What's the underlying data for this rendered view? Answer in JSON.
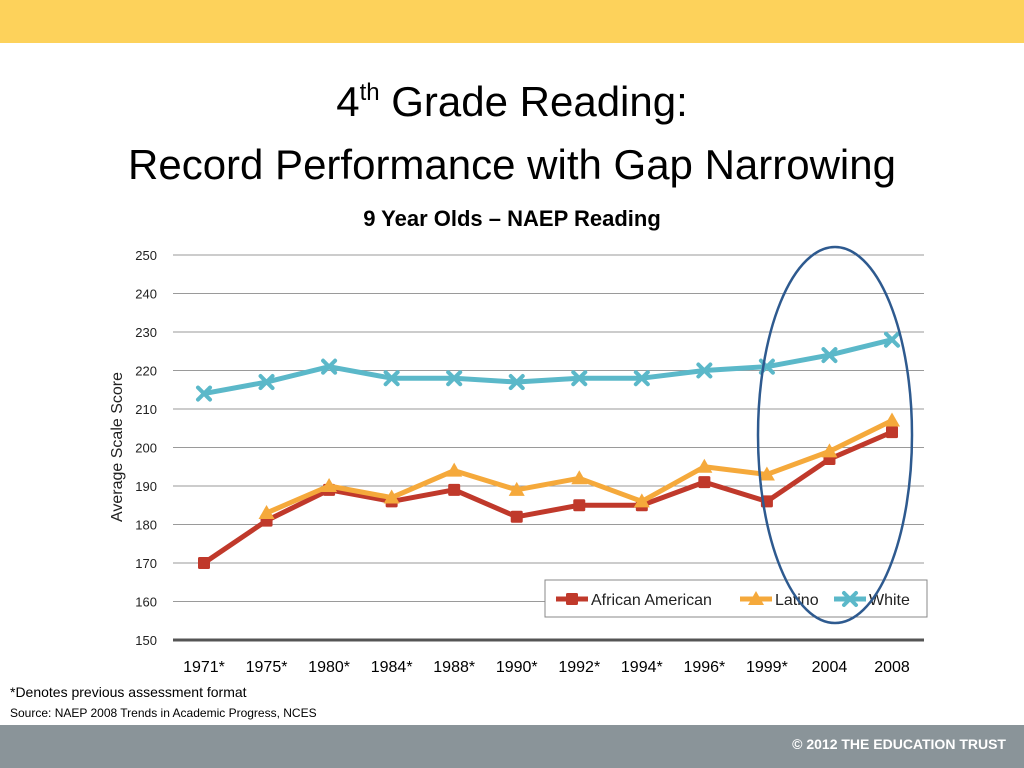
{
  "slide": {
    "title_num": "4",
    "title_sup": "th",
    "title_rest": " Grade Reading:",
    "title_line2": "Record Performance with Gap Narrowing",
    "footnote": "*Denotes previous assessment format",
    "source": "Source: NAEP 2008 Trends in Academic Progress, NCES",
    "copyright": "© 2012 THE EDUCATION TRUST"
  },
  "colors": {
    "top_bar": "#fdd25b",
    "bottom_bar": "#8a9499",
    "highlight_ellipse": "#2e5a8f"
  },
  "chart_data": {
    "type": "line",
    "title": "9 Year Olds – NAEP Reading",
    "xlabel": "",
    "ylabel": "Average Scale Score",
    "ylim": [
      150,
      250
    ],
    "yticks": [
      150,
      160,
      170,
      180,
      190,
      200,
      210,
      220,
      230,
      240,
      250
    ],
    "grid": true,
    "legend_position": "bottom-right",
    "categories": [
      "1971*",
      "1975*",
      "1980*",
      "1984*",
      "1988*",
      "1990*",
      "1992*",
      "1994*",
      "1996*",
      "1999*",
      "2004",
      "2008"
    ],
    "series": [
      {
        "name": "African American",
        "color": "#c0392b",
        "marker": "square",
        "values": [
          170,
          181,
          189,
          186,
          189,
          182,
          185,
          185,
          191,
          186,
          197,
          204
        ]
      },
      {
        "name": "Latino",
        "color": "#f5a93b",
        "marker": "triangle",
        "values": [
          null,
          183,
          190,
          187,
          194,
          189,
          192,
          186,
          195,
          193,
          199,
          207
        ]
      },
      {
        "name": "White",
        "color": "#5bb8c9",
        "marker": "x",
        "values": [
          214,
          217,
          221,
          218,
          218,
          217,
          218,
          218,
          220,
          221,
          224,
          228
        ]
      }
    ],
    "annotation": "ellipse highlighting 1999*–2008"
  }
}
